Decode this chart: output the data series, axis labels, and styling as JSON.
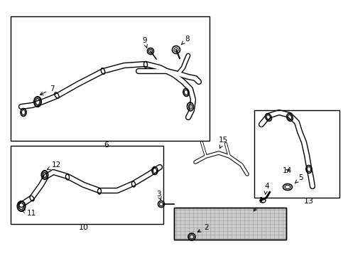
{
  "bg_color": "#ffffff",
  "line_color": "#000000",
  "figure_width": 4.9,
  "figure_height": 3.6,
  "dpi": 100
}
